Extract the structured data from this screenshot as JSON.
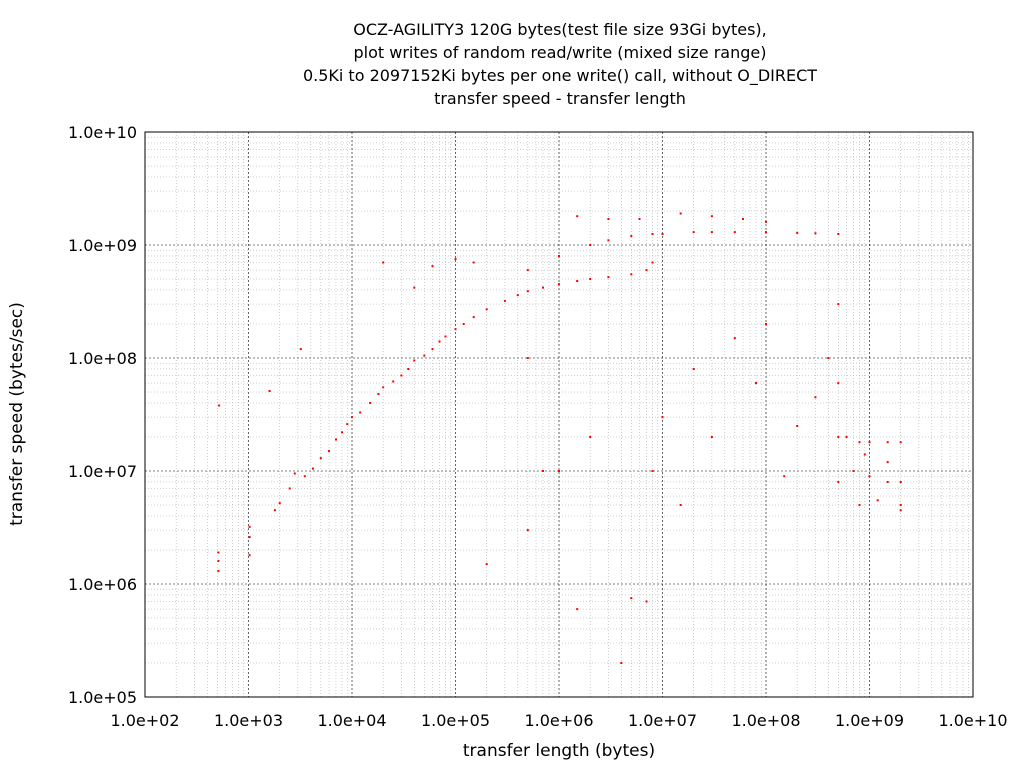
{
  "chart_data": {
    "type": "scatter",
    "title_lines": [
      "OCZ-AGILITY3 120G bytes(test file size 93Gi bytes),",
      "plot writes of random read/write (mixed size range)",
      "0.5Ki to 2097152Ki bytes per one write() call, without O_DIRECT",
      "transfer speed - transfer length"
    ],
    "xlabel": "transfer length (bytes)",
    "ylabel": "transfer speed (bytes/sec)",
    "x_scale": "log",
    "y_scale": "log",
    "xlim": [
      100,
      10000000000
    ],
    "ylim": [
      100000,
      10000000000
    ],
    "x_ticks": [
      "1.0e+02",
      "1.0e+03",
      "1.0e+04",
      "1.0e+05",
      "1.0e+06",
      "1.0e+07",
      "1.0e+08",
      "1.0e+09",
      "1.0e+10"
    ],
    "y_ticks": [
      "1.0e+05",
      "1.0e+06",
      "1.0e+07",
      "1.0e+08",
      "1.0e+09",
      "1.0e+10"
    ],
    "grid": true,
    "minor_grid": true,
    "point_color": "#ff0000",
    "series": [
      {
        "points": [
          [
            512,
            1300000
          ],
          [
            512,
            1600000
          ],
          [
            512,
            1900000
          ],
          [
            520,
            38000000
          ],
          [
            1024,
            1800000
          ],
          [
            1024,
            2600000
          ],
          [
            1024,
            3200000
          ],
          [
            1600,
            51000000
          ],
          [
            1800,
            4500000
          ],
          [
            2000,
            5200000
          ],
          [
            2500,
            7000000
          ],
          [
            2800,
            9500000
          ],
          [
            3200,
            120000000
          ],
          [
            3500,
            9000000
          ],
          [
            4200,
            10500000
          ],
          [
            5000,
            13000000
          ],
          [
            6000,
            15000000
          ],
          [
            7000,
            19000000
          ],
          [
            8000,
            22000000
          ],
          [
            9000,
            26000000
          ],
          [
            10000,
            30000000
          ],
          [
            12000,
            33000000
          ],
          [
            15000,
            40000000
          ],
          [
            18000,
            48000000
          ],
          [
            20000,
            55000000
          ],
          [
            25000,
            62000000
          ],
          [
            30000,
            70000000
          ],
          [
            35000,
            80000000
          ],
          [
            40000,
            95000000
          ],
          [
            50000,
            105000000
          ],
          [
            60000,
            120000000
          ],
          [
            70000,
            140000000
          ],
          [
            80000,
            155000000
          ],
          [
            100000,
            180000000
          ],
          [
            120000,
            200000000
          ],
          [
            150000,
            230000000
          ],
          [
            200000,
            270000000
          ],
          [
            300000,
            320000000
          ],
          [
            400000,
            360000000
          ],
          [
            500000,
            390000000
          ],
          [
            700000,
            420000000
          ],
          [
            1000000,
            450000000
          ],
          [
            1500000,
            480000000
          ],
          [
            2000000,
            500000000
          ],
          [
            3000000,
            520000000
          ],
          [
            5000000,
            550000000
          ],
          [
            7000000,
            600000000
          ],
          [
            8000000,
            700000000
          ],
          [
            500000,
            600000000
          ],
          [
            1000000,
            800000000
          ],
          [
            2000000,
            1000000000
          ],
          [
            3000000,
            1100000000
          ],
          [
            5000000,
            1200000000
          ],
          [
            8000000,
            1250000000
          ],
          [
            10000000,
            1250000000
          ],
          [
            20000000,
            1300000000
          ],
          [
            30000000,
            1300000000
          ],
          [
            50000000,
            1300000000
          ],
          [
            100000000,
            1300000000
          ],
          [
            200000000,
            1280000000
          ],
          [
            300000000,
            1270000000
          ],
          [
            500000000,
            1250000000
          ],
          [
            1500000,
            1800000000
          ],
          [
            3000000,
            1700000000
          ],
          [
            6000000,
            1700000000
          ],
          [
            15000000,
            1900000000
          ],
          [
            30000000,
            1800000000
          ],
          [
            60000000,
            1700000000
          ],
          [
            100000000,
            1600000000
          ],
          [
            100000,
            750000000
          ],
          [
            60000,
            650000000
          ],
          [
            150000,
            700000000
          ],
          [
            40000,
            420000000
          ],
          [
            20000,
            700000000
          ],
          [
            500000,
            100000000
          ],
          [
            700000,
            10000000
          ],
          [
            1500000,
            600000
          ],
          [
            5000000,
            750000
          ],
          [
            7000000,
            700000
          ],
          [
            4000000,
            200000
          ],
          [
            200000,
            1500000
          ],
          [
            500000,
            3000000
          ],
          [
            1000000,
            10000000
          ],
          [
            2000000,
            20000000
          ],
          [
            8000000,
            10000000
          ],
          [
            10000000,
            30000000
          ],
          [
            15000000,
            5000000
          ],
          [
            20000000,
            80000000
          ],
          [
            30000000,
            20000000
          ],
          [
            50000000,
            150000000
          ],
          [
            80000000,
            60000000
          ],
          [
            100000000,
            200000000
          ],
          [
            150000000,
            9000000
          ],
          [
            200000000,
            25000000
          ],
          [
            300000000,
            45000000
          ],
          [
            400000000,
            100000000
          ],
          [
            500000000,
            300000000
          ],
          [
            500000000,
            60000000
          ],
          [
            500000000,
            20000000
          ],
          [
            500000000,
            8000000
          ],
          [
            600000000,
            20000000
          ],
          [
            800000000,
            18000000
          ],
          [
            1000000000,
            18000000
          ],
          [
            1500000000,
            18000000
          ],
          [
            2000000000,
            18000000
          ],
          [
            700000000,
            10000000
          ],
          [
            1000000000,
            9000000
          ],
          [
            1500000000,
            8000000
          ],
          [
            2000000000,
            8000000
          ],
          [
            800000000,
            5000000
          ],
          [
            1200000000,
            5500000
          ],
          [
            2000000000,
            5000000
          ],
          [
            2000000000,
            4500000
          ],
          [
            1500000000,
            12000000
          ],
          [
            900000000,
            14000000
          ]
        ]
      }
    ]
  }
}
